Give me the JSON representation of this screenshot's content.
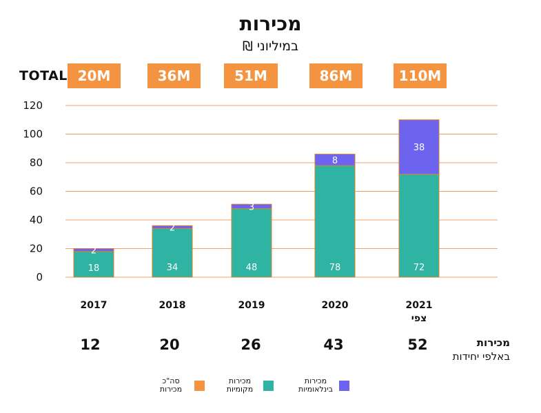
{
  "title": "מכירות",
  "subtitle": "במיליוני ₪",
  "totals": {
    "label": "TOTAL",
    "values": [
      "20M",
      "36M",
      "51M",
      "86M",
      "110M"
    ]
  },
  "units_row": {
    "title": "מכירות",
    "subtitle": "באלפי יחידות",
    "values": [
      "12",
      "20",
      "26",
      "43",
      "52"
    ]
  },
  "legend": [
    {
      "name": "total",
      "label": "סה\"כ\nמכירות",
      "color": "#f59440"
    },
    {
      "name": "local",
      "label": "מכירות\nמקומיות",
      "color": "#2fb3a3"
    },
    {
      "name": "international",
      "label": "מכירות\nבינלאומיות",
      "color": "#6c63ef"
    }
  ],
  "chart_data": {
    "type": "bar",
    "stacked": true,
    "categories": [
      "2017",
      "2018",
      "2019",
      "2020",
      "2021"
    ],
    "category_sublabels": [
      "",
      "",
      "",
      "",
      "צפי"
    ],
    "series": [
      {
        "name": "מכירות מקומיות",
        "values": [
          18,
          34,
          48,
          78,
          72
        ],
        "color": "#2fb3a3"
      },
      {
        "name": "מכירות בינלאומיות",
        "values": [
          2,
          2,
          3,
          8,
          38
        ],
        "color": "#6c63ef"
      }
    ],
    "ylim": [
      0,
      120
    ],
    "yticks": [
      0,
      20,
      40,
      60,
      80,
      100,
      120
    ],
    "grid": true,
    "gridline_color": "#f2a06a",
    "bar_outline_color": "#d9822b",
    "legend_position": "bottom"
  }
}
